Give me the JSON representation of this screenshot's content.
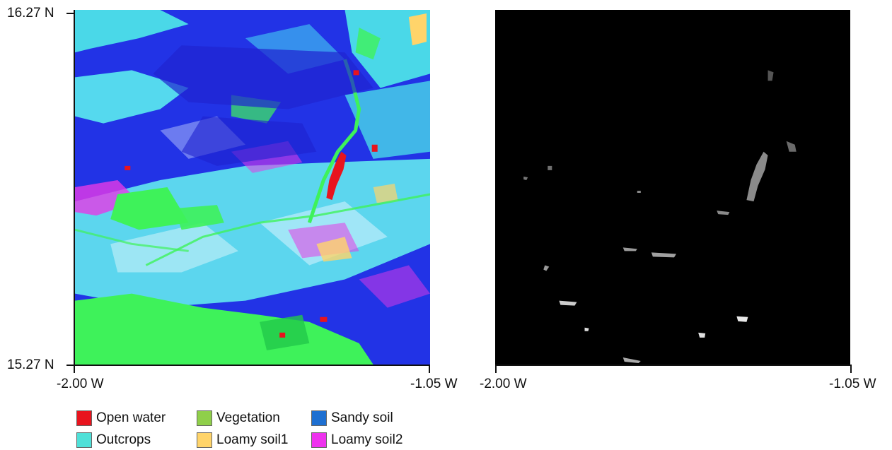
{
  "left_map": {
    "lat_top": "16.27 N",
    "lat_bottom": "15.27 N",
    "lon_left": "-2.00 W",
    "lon_right": "-1.05 W"
  },
  "right_map": {
    "lon_left": "-2.00 W",
    "lon_right": "-1.05 W"
  },
  "legend": {
    "items": [
      {
        "label": "Open water",
        "color": "#e8141e"
      },
      {
        "label": "Vegetation",
        "color": "#8fcf4a"
      },
      {
        "label": "Sandy soil",
        "color": "#1d6fd1"
      },
      {
        "label": "Outcrops",
        "color": "#4fe0d8"
      },
      {
        "label": "Loamy soil1",
        "color": "#ffd46a"
      },
      {
        "label": "Loamy soil2",
        "color": "#ee33ee"
      }
    ]
  }
}
